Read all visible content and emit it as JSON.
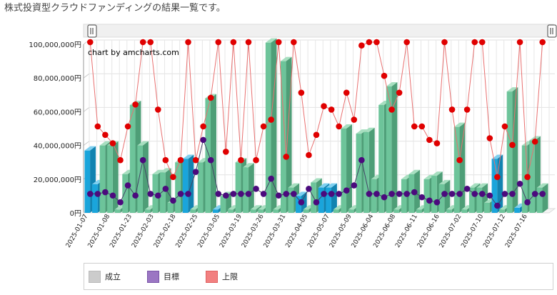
{
  "page": {
    "heading": "株式投資型クラウドファンディングの結果一覧です。"
  },
  "chart_data": {
    "type": "bar",
    "credit": "chart by amcharts.com",
    "y_ticks": [
      "0円",
      "20,000,000円",
      "40,000,000円",
      "60,000,000円",
      "80,000,000円",
      "100,000,000円"
    ],
    "ylim": [
      0,
      100000000
    ],
    "categories": [
      "2025-01-07",
      "2025-01-08",
      "2025-01-23",
      "2025-02-03",
      "2025-02-18",
      "2025-02-25",
      "2025-03-05",
      "2025-03-19",
      "2025-03-26",
      "2025-03-31",
      "2025-04-05",
      "2025-05-07",
      "2025-05-09",
      "2025-06-04",
      "2025-06-08",
      "2025-06-11",
      "2025-06-16",
      "2025-07-02",
      "2025-07-10",
      "2025-07-12",
      "2025-07-16"
    ],
    "x_values": [
      37000000,
      17000000,
      40000000,
      40000000,
      2000000,
      23000000,
      64000000,
      40000000,
      2000000,
      23000000,
      24000000,
      6000000,
      30000000,
      32000000,
      2000000,
      30000000,
      68000000,
      2000000,
      10000000,
      2000000,
      30000000,
      27000000,
      2000000,
      2000000,
      101000000,
      2000000,
      90000000,
      15000000,
      10000000,
      2000000,
      18000000,
      15000000,
      15000000,
      2000000,
      50000000,
      2000000,
      47000000,
      48000000,
      20000000,
      64000000,
      75000000,
      2000000,
      20000000,
      23000000,
      2000000,
      20000000,
      22000000,
      17000000,
      2000000,
      51000000,
      2000000,
      15000000,
      15000000,
      6000000,
      32000000,
      2000000,
      72000000,
      3000000,
      40000000,
      43000000,
      15000000
    ],
    "target_values": [
      10000000,
      10000000,
      11000000,
      9000000,
      5000000,
      15000000,
      9000000,
      30000000,
      10000000,
      9000000,
      13000000,
      6000000,
      10000000,
      10000000,
      23000000,
      42000000,
      30000000,
      10000000,
      9000000,
      10000000,
      10000000,
      10000000,
      13000000,
      10000000,
      19000000,
      9000000,
      10000000,
      10000000,
      5000000,
      13000000,
      5000000,
      10000000,
      10000000,
      10000000,
      12000000,
      15000000,
      30000000,
      10000000,
      10000000,
      8000000,
      10000000,
      10000000,
      10000000,
      11000000,
      8000000,
      6000000,
      5000000,
      10000000,
      10000000,
      10000000,
      13000000,
      10000000,
      10000000,
      9000000,
      3000000,
      10000000,
      10000000,
      16000000,
      5000000,
      10000000,
      10000000
    ],
    "upper_values": [
      100000000,
      50000000,
      45000000,
      40000000,
      30000000,
      50000000,
      63000000,
      100000000,
      100000000,
      60000000,
      30000000,
      20000000,
      30000000,
      100000000,
      30000000,
      50000000,
      67000000,
      100000000,
      35000000,
      100000000,
      30000000,
      100000000,
      30000000,
      50000000,
      54000000,
      100000000,
      32000000,
      100000000,
      70000000,
      33000000,
      45000000,
      62000000,
      60000000,
      50000000,
      70000000,
      54000000,
      98000000,
      100000000,
      100000000,
      80000000,
      60000000,
      70000000,
      100000000,
      50000000,
      50000000,
      42000000,
      40000000,
      100000000,
      60000000,
      30000000,
      60000000,
      100000000,
      100000000,
      43000000,
      20000000,
      50000000,
      39000000,
      100000000,
      20000000,
      41000000,
      100000000
    ],
    "bar_status": [
      1,
      1,
      0,
      0,
      0,
      0,
      0,
      0,
      0,
      0,
      0,
      0,
      0,
      1,
      0,
      0,
      0,
      1,
      0,
      0,
      0,
      0,
      0,
      0,
      0,
      0,
      0,
      0,
      1,
      0,
      0,
      1,
      1,
      0,
      0,
      0,
      0,
      0,
      0,
      0,
      0,
      0,
      0,
      0,
      0,
      0,
      0,
      0,
      0,
      0,
      0,
      0,
      0,
      0,
      1,
      0,
      0,
      1,
      0,
      0,
      0
    ],
    "legend": [
      {
        "label": "成立",
        "color": "#cccccc",
        "border": "#bbbbbb"
      },
      {
        "label": "目標",
        "color": "#9b76c3",
        "border": "#7a55a8"
      },
      {
        "label": "上限",
        "color": "#f28080",
        "border": "#e06060"
      }
    ],
    "colors": {
      "bar_green_front": "#6dc49a",
      "bar_green_top": "#a7dfc0",
      "bar_green_side": "#4e9e77",
      "bar_blue_front": "#1aa5db",
      "bar_blue_top": "#7fd0f0",
      "bar_blue_side": "#1283b0",
      "target_dot": "#4b0a7d",
      "target_line": "#444466",
      "upper_dot": "#e00000",
      "upper_line": "#e87070"
    }
  }
}
